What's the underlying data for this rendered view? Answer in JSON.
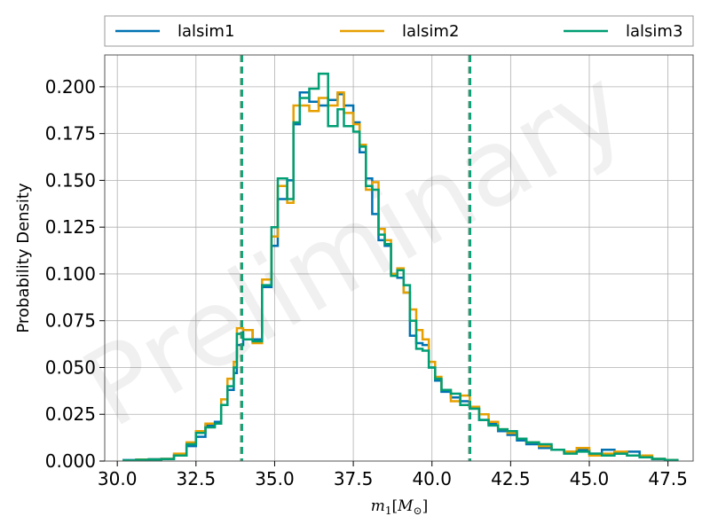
{
  "chart_data": {
    "type": "histogram",
    "title": "",
    "xlabel": "m_1[M_⊙]",
    "xlabel_display": {
      "main": "m",
      "sub": "1",
      "bracket_open": "[",
      "unit_main": "M",
      "unit_sub": "⊙",
      "bracket_close": "]"
    },
    "ylabel": "Probability Density",
    "xlim": [
      29.6,
      48.3
    ],
    "ylim": [
      0,
      0.217
    ],
    "xticks": [
      30.0,
      32.5,
      35.0,
      37.5,
      40.0,
      42.5,
      45.0,
      47.5
    ],
    "xtick_labels": [
      "30.0",
      "32.5",
      "35.0",
      "37.5",
      "40.0",
      "42.5",
      "45.0",
      "47.5"
    ],
    "yticks": [
      0.0,
      0.025,
      0.05,
      0.075,
      0.1,
      0.125,
      0.15,
      0.175,
      0.2
    ],
    "ytick_labels": [
      "0.000",
      "0.025",
      "0.050",
      "0.075",
      "0.100",
      "0.125",
      "0.150",
      "0.175",
      "0.200"
    ],
    "grid": true,
    "legend_placement": "top, outside plot, 3 columns",
    "watermark": "Preliminary",
    "bin_edges": [
      30.2,
      30.6,
      31.0,
      31.4,
      31.8,
      32.2,
      32.5,
      32.8,
      33.1,
      33.3,
      33.5,
      33.7,
      33.8,
      34.0,
      34.3,
      34.6,
      34.9,
      35.1,
      35.4,
      35.6,
      35.8,
      36.1,
      36.4,
      36.7,
      37.0,
      37.2,
      37.5,
      37.7,
      37.9,
      38.1,
      38.3,
      38.5,
      38.7,
      38.9,
      39.1,
      39.3,
      39.5,
      39.7,
      39.9,
      40.1,
      40.3,
      40.6,
      40.9,
      41.2,
      41.5,
      41.8,
      42.1,
      42.4,
      42.7,
      43.0,
      43.4,
      43.8,
      44.2,
      44.6,
      45.0,
      45.4,
      45.8,
      46.2,
      46.6,
      47.0,
      47.4,
      47.8
    ],
    "series": [
      {
        "name": "lalsim1",
        "color": "#0072b2",
        "values": [
          0.0005,
          0.0008,
          0.001,
          0.0012,
          0.003,
          0.008,
          0.013,
          0.019,
          0.021,
          0.03,
          0.038,
          0.047,
          0.062,
          0.07,
          0.065,
          0.093,
          0.115,
          0.14,
          0.15,
          0.18,
          0.197,
          0.192,
          0.19,
          0.193,
          0.196,
          0.19,
          0.181,
          0.165,
          0.151,
          0.132,
          0.118,
          0.115,
          0.1,
          0.098,
          0.09,
          0.067,
          0.063,
          0.062,
          0.05,
          0.043,
          0.037,
          0.034,
          0.032,
          0.028,
          0.022,
          0.02,
          0.016,
          0.014,
          0.011,
          0.009,
          0.007,
          0.006,
          0.005,
          0.006,
          0.004,
          0.006,
          0.004,
          0.005,
          0.002,
          0.001,
          0.0005
        ]
      },
      {
        "name": "lalsim2",
        "color": "#e69f00",
        "values": [
          0.0004,
          0.0008,
          0.0009,
          0.0012,
          0.004,
          0.01,
          0.016,
          0.02,
          0.02,
          0.033,
          0.044,
          0.053,
          0.071,
          0.07,
          0.063,
          0.097,
          0.12,
          0.147,
          0.138,
          0.19,
          0.19,
          0.187,
          0.194,
          0.19,
          0.197,
          0.186,
          0.18,
          0.169,
          0.145,
          0.149,
          0.124,
          0.118,
          0.1,
          0.103,
          0.09,
          0.081,
          0.07,
          0.065,
          0.053,
          0.045,
          0.038,
          0.032,
          0.035,
          0.029,
          0.025,
          0.021,
          0.017,
          0.015,
          0.012,
          0.01,
          0.008,
          0.006,
          0.005,
          0.007,
          0.003,
          0.004,
          0.005,
          0.003,
          0.003,
          0.0012,
          0.0005
        ]
      },
      {
        "name": "lalsim3",
        "color": "#009e73",
        "values": [
          0.0004,
          0.0007,
          0.0008,
          0.0011,
          0.003,
          0.009,
          0.015,
          0.018,
          0.02,
          0.03,
          0.04,
          0.05,
          0.068,
          0.065,
          0.064,
          0.094,
          0.125,
          0.151,
          0.14,
          0.181,
          0.194,
          0.199,
          0.207,
          0.179,
          0.188,
          0.179,
          0.176,
          0.168,
          0.147,
          0.145,
          0.121,
          0.116,
          0.099,
          0.102,
          0.094,
          0.075,
          0.06,
          0.059,
          0.05,
          0.044,
          0.038,
          0.036,
          0.03,
          0.028,
          0.022,
          0.019,
          0.017,
          0.016,
          0.012,
          0.01,
          0.009,
          0.006,
          0.004,
          0.005,
          0.004,
          0.003,
          0.004,
          0.003,
          0.002,
          0.0012,
          0.0005
        ]
      }
    ],
    "vlines": [
      {
        "x": 33.95,
        "style": "dashed"
      },
      {
        "x": 41.2,
        "style": "dashed"
      }
    ]
  }
}
